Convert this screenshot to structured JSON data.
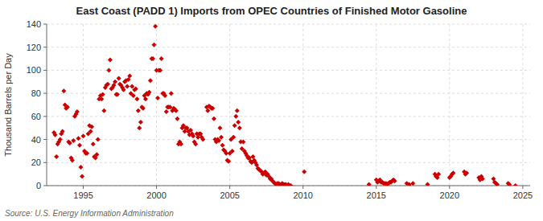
{
  "chart_data": {
    "type": "scatter",
    "title": "East Coast (PADD 1) Imports from OPEC Countries of Finished Motor Gasoline",
    "ylabel": "Thousand Barrels per Day",
    "annotations": [
      "Source: U.S. Energy Information Administration"
    ],
    "color": "#cc0000",
    "marker": "diamond",
    "grid": true,
    "xlim": [
      1992.5,
      2025.5
    ],
    "xticks": [
      1995,
      2000,
      2005,
      2010,
      2015,
      2020,
      2025
    ],
    "ylim": [
      0,
      140
    ],
    "yticks": [
      0,
      20,
      40,
      60,
      80,
      100,
      120,
      140
    ],
    "x": [
      1993.0,
      1993.08,
      1993.17,
      1993.25,
      1993.33,
      1993.42,
      1993.5,
      1993.58,
      1993.67,
      1993.75,
      1993.83,
      1993.92,
      1994.0,
      1994.08,
      1994.17,
      1994.25,
      1994.33,
      1994.42,
      1994.5,
      1994.58,
      1994.67,
      1994.75,
      1994.83,
      1994.92,
      1995.0,
      1995.08,
      1995.17,
      1995.25,
      1995.33,
      1995.42,
      1995.5,
      1995.58,
      1995.67,
      1995.75,
      1995.83,
      1995.92,
      1996.0,
      1996.08,
      1996.17,
      1996.25,
      1996.33,
      1996.42,
      1996.5,
      1996.58,
      1996.67,
      1996.75,
      1996.83,
      1996.92,
      1997.0,
      1997.08,
      1997.17,
      1997.25,
      1997.33,
      1997.42,
      1997.5,
      1997.58,
      1997.67,
      1997.75,
      1997.83,
      1997.92,
      1998.0,
      1998.08,
      1998.17,
      1998.25,
      1998.33,
      1998.42,
      1998.5,
      1998.58,
      1998.67,
      1998.75,
      1998.83,
      1998.92,
      1999.0,
      1999.08,
      1999.17,
      1999.25,
      1999.33,
      1999.42,
      1999.5,
      1999.58,
      1999.67,
      1999.75,
      1999.83,
      1999.92,
      2000.0,
      2000.08,
      2000.17,
      2000.25,
      2000.33,
      2000.42,
      2000.5,
      2000.58,
      2000.67,
      2000.75,
      2000.83,
      2000.92,
      2001.0,
      2001.08,
      2001.17,
      2001.25,
      2001.33,
      2001.42,
      2001.5,
      2001.58,
      2001.67,
      2001.75,
      2001.83,
      2001.92,
      2002.0,
      2002.08,
      2002.17,
      2002.25,
      2002.33,
      2002.42,
      2002.5,
      2002.58,
      2002.67,
      2002.75,
      2002.83,
      2002.92,
      2003.0,
      2003.08,
      2003.17,
      2003.42,
      2003.5,
      2003.58,
      2003.67,
      2003.75,
      2003.83,
      2003.92,
      2004.0,
      2004.08,
      2004.17,
      2004.25,
      2004.33,
      2004.42,
      2004.5,
      2004.58,
      2004.67,
      2004.75,
      2004.83,
      2004.92,
      2005.0,
      2005.08,
      2005.17,
      2005.25,
      2005.33,
      2005.42,
      2005.5,
      2005.58,
      2005.67,
      2005.75,
      2005.83,
      2005.92,
      2006.0,
      2006.08,
      2006.17,
      2006.25,
      2006.33,
      2006.42,
      2006.5,
      2006.58,
      2006.67,
      2006.75,
      2006.83,
      2006.92,
      2007.0,
      2007.08,
      2007.17,
      2007.25,
      2007.33,
      2007.42,
      2007.5,
      2007.58,
      2007.67,
      2007.75,
      2007.83,
      2007.92,
      2008.0,
      2008.08,
      2008.17,
      2008.25,
      2008.33,
      2008.42,
      2008.5,
      2008.58,
      2008.67,
      2008.75,
      2008.83,
      2008.92,
      2009.0,
      2009.08,
      2009.17,
      2010.08,
      2014.5,
      2015.0,
      2015.08,
      2015.17,
      2015.25,
      2015.33,
      2015.42,
      2015.5,
      2015.58,
      2015.67,
      2015.75,
      2015.83,
      2015.92,
      2016.0,
      2016.08,
      2016.17,
      2016.25,
      2017.08,
      2017.25,
      2017.5,
      2018.5,
      2019.0,
      2019.08,
      2019.17,
      2019.25,
      2020.0,
      2020.08,
      2020.17,
      2020.25,
      2021.0,
      2021.08,
      2021.17,
      2022.0,
      2022.08,
      2022.17,
      2022.25,
      2023.0,
      2023.08,
      2023.17,
      2023.25,
      2024.0,
      2024.08,
      2024.5
    ],
    "values": [
      46,
      44,
      25,
      36,
      38,
      40,
      45,
      47,
      82,
      70,
      67,
      68,
      38,
      37,
      24,
      22,
      39,
      60,
      62,
      64,
      41,
      35,
      16,
      8,
      43,
      30,
      28,
      28,
      45,
      52,
      47,
      51,
      36,
      25,
      24,
      27,
      40,
      75,
      78,
      75,
      79,
      65,
      85,
      87,
      88,
      100,
      109,
      84,
      85,
      87,
      90,
      79,
      79,
      93,
      88,
      87,
      85,
      83,
      90,
      91,
      86,
      92,
      95,
      80,
      86,
      78,
      83,
      84,
      75,
      65,
      50,
      55,
      68,
      67,
      78,
      75,
      80,
      79,
      81,
      91,
      110,
      110,
      122,
      138,
      100,
      76,
      100,
      100,
      110,
      80,
      80,
      78,
      64,
      68,
      68,
      68,
      80,
      65,
      67,
      66,
      65,
      58,
      36,
      38,
      36,
      50,
      52,
      47,
      50,
      50,
      47,
      44,
      48,
      45,
      43,
      38,
      36,
      45,
      42,
      45,
      45,
      42,
      40,
      68,
      65,
      69,
      68,
      67,
      67,
      58,
      40,
      38,
      40,
      39,
      50,
      42,
      35,
      31,
      30,
      28,
      22,
      21,
      28,
      40,
      30,
      42,
      52,
      60,
      65,
      55,
      50,
      38,
      32,
      38,
      30,
      28,
      26,
      24,
      24,
      21,
      20,
      25,
      22,
      20,
      18,
      15,
      14,
      13,
      12,
      10,
      11,
      12,
      9,
      10,
      8,
      6,
      6,
      4,
      3,
      2,
      1,
      2,
      2,
      1,
      1,
      2,
      1,
      1,
      1,
      0,
      1,
      0,
      0,
      12,
      1,
      5,
      3,
      4,
      5,
      3,
      3,
      2,
      2,
      2,
      1,
      2,
      3,
      3,
      4,
      5,
      4,
      2,
      1,
      2,
      1,
      10,
      8,
      7,
      10,
      7,
      8,
      10,
      11,
      12,
      10,
      11,
      7,
      5,
      8,
      6,
      6,
      3,
      2,
      1,
      2,
      1,
      0
    ]
  }
}
